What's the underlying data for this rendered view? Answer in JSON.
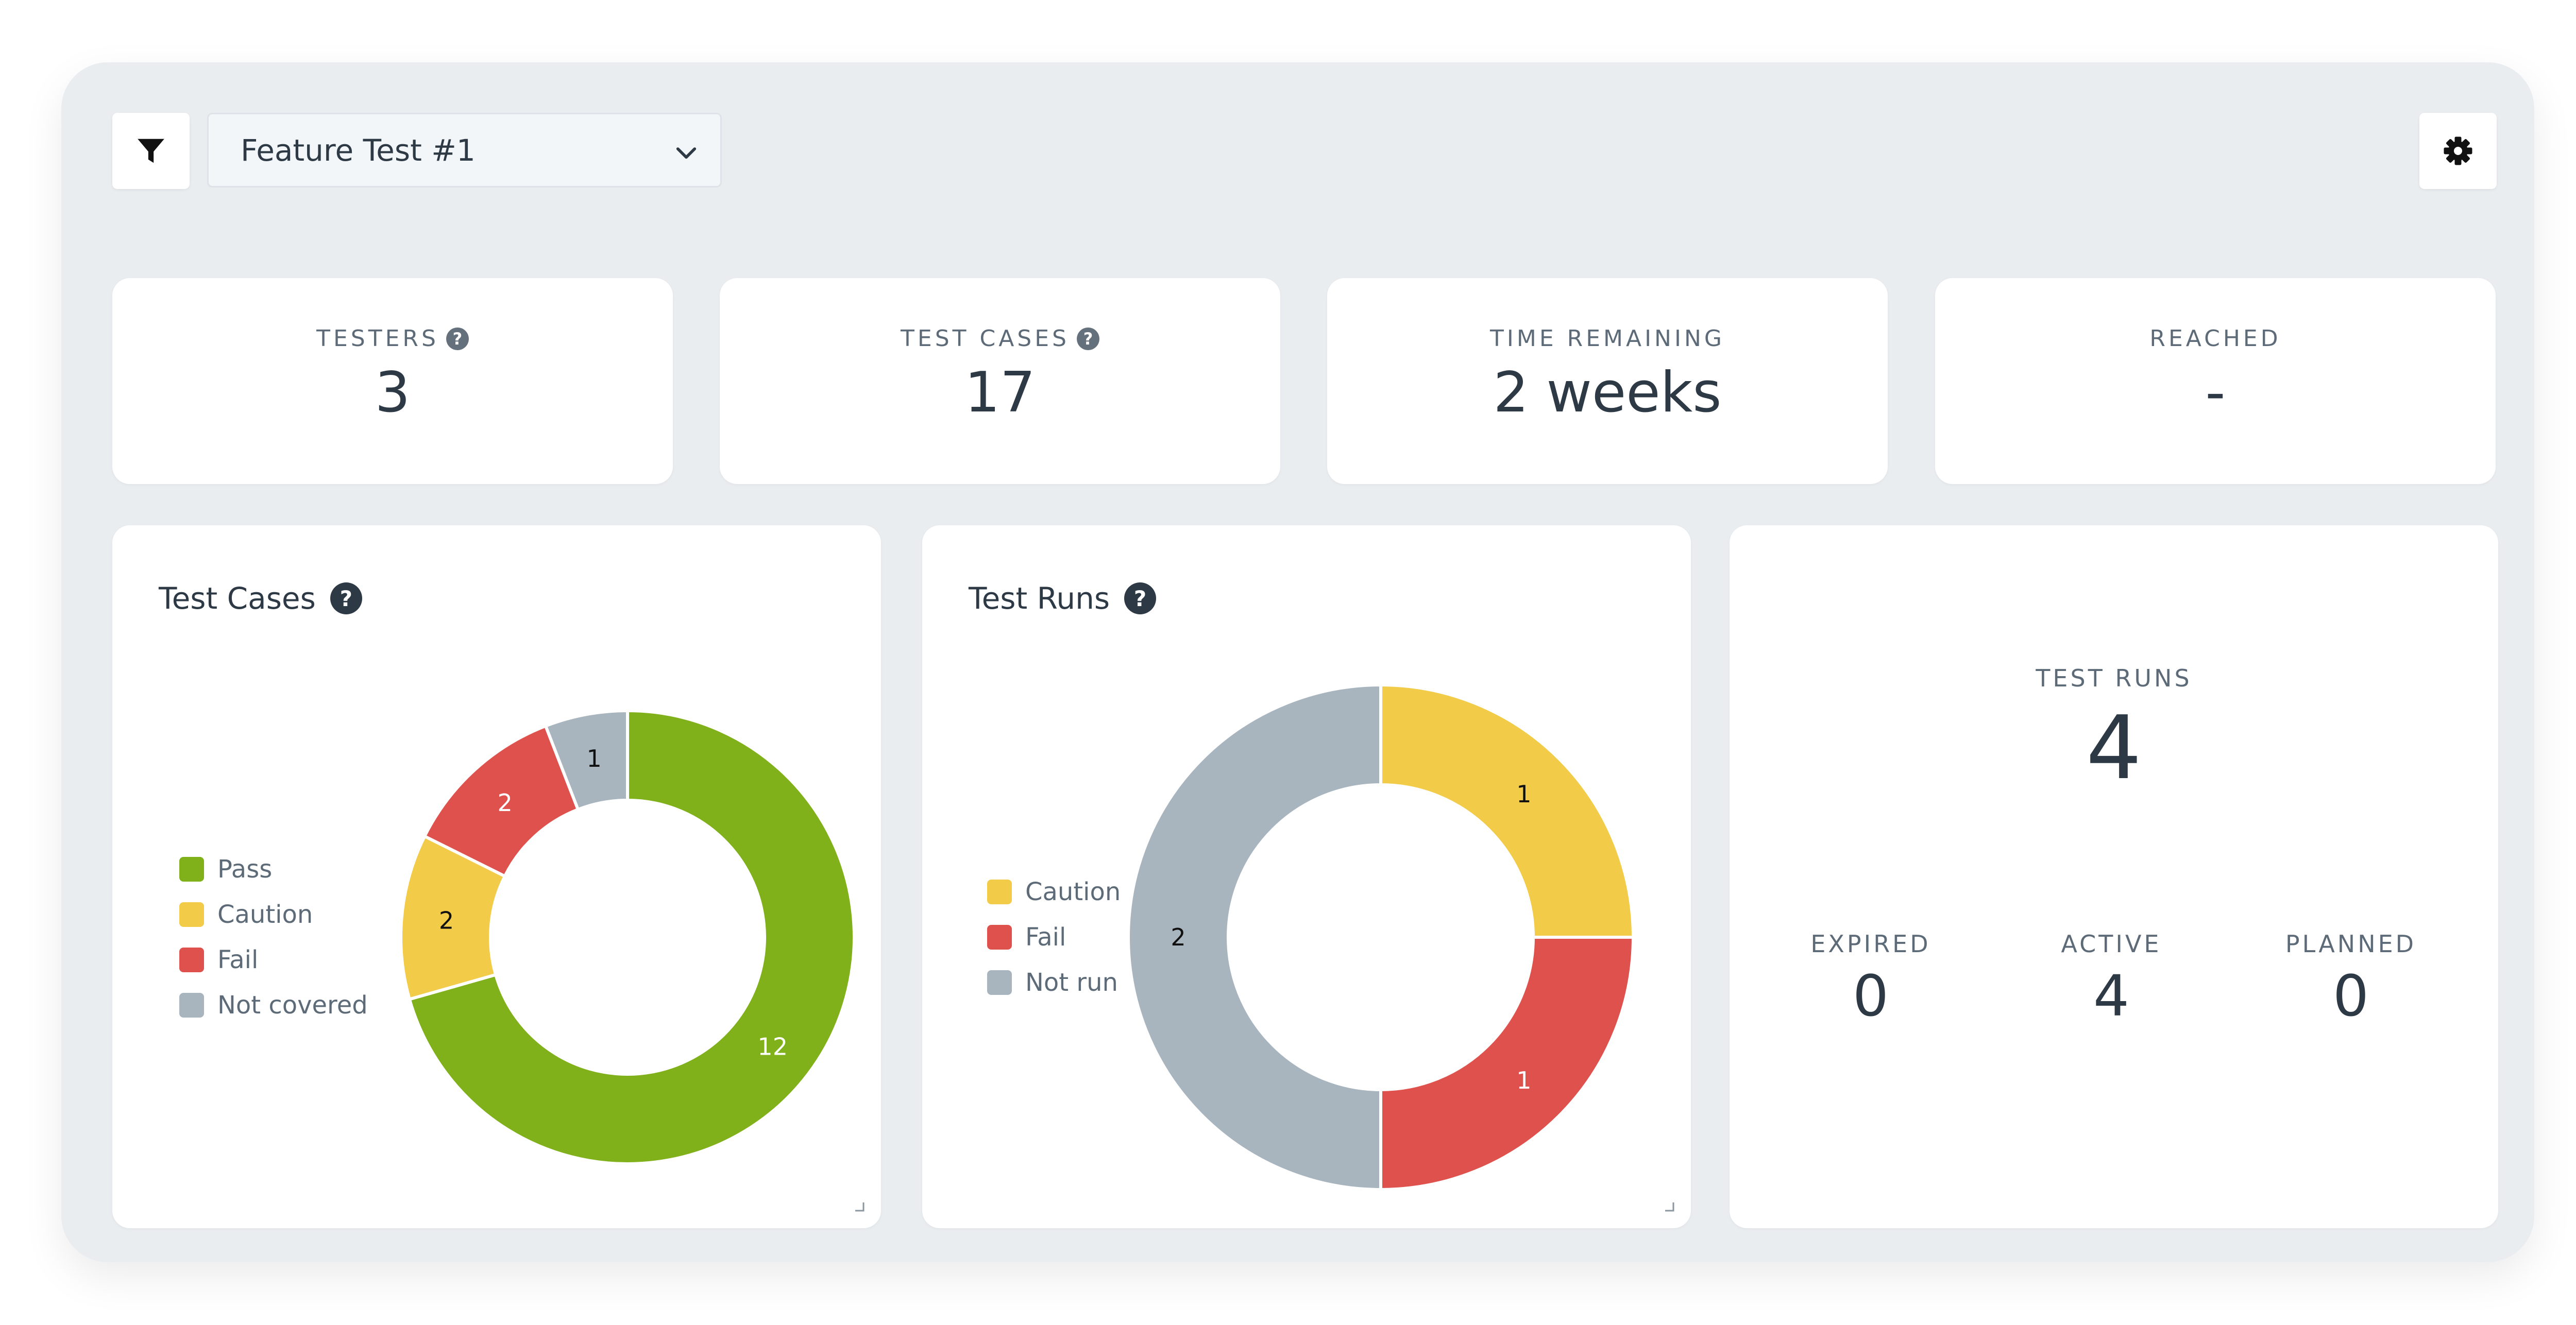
{
  "toolbar": {
    "filter_icon": "filter-icon",
    "settings_icon": "gear-icon",
    "selected_test": "Feature Test #1"
  },
  "stats": [
    {
      "label": "TESTERS",
      "value": "3",
      "help": true
    },
    {
      "label": "TEST CASES",
      "value": "17",
      "help": true
    },
    {
      "label": "TIME REMAINING",
      "value": "2 weeks",
      "help": false
    },
    {
      "label": "REACHED",
      "value": "-",
      "help": false
    }
  ],
  "help_glyph": "?",
  "test_cases_chart": {
    "title": "Test Cases",
    "legend": [
      "Pass",
      "Caution",
      "Fail",
      "Not covered"
    ]
  },
  "test_runs_chart": {
    "title": "Test Runs",
    "legend": [
      "Caution",
      "Fail",
      "Not run"
    ]
  },
  "runs_summary": {
    "title": "TEST RUNS",
    "total": "4",
    "expired_label": "EXPIRED",
    "expired": "0",
    "active_label": "ACTIVE",
    "active": "4",
    "planned_label": "PLANNED",
    "planned": "0"
  },
  "colors": {
    "pass": "#80b11a",
    "caution": "#f2cb49",
    "fail": "#de514d",
    "not_covered": "#a8b5be"
  },
  "chart_data": [
    {
      "type": "pie",
      "title": "Test Cases",
      "categories": [
        "Pass",
        "Caution",
        "Fail",
        "Not covered"
      ],
      "values": [
        12,
        2,
        2,
        1
      ],
      "colors": [
        "#80b11a",
        "#f2cb49",
        "#de514d",
        "#a8b5be"
      ],
      "legend": "left"
    },
    {
      "type": "pie",
      "title": "Test Runs",
      "categories": [
        "Caution",
        "Fail",
        "Not run"
      ],
      "values": [
        1,
        1,
        2
      ],
      "colors": [
        "#f2cb49",
        "#de514d",
        "#a8b5be"
      ],
      "legend": "left"
    }
  ]
}
